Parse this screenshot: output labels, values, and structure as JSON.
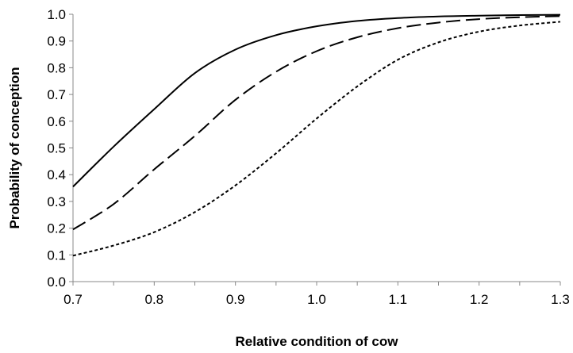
{
  "chart_data": {
    "type": "line",
    "title": "",
    "xlabel": "Relative condition of cow",
    "ylabel": "Probability of conception",
    "xlim": [
      0.7,
      1.3
    ],
    "ylim": [
      0.0,
      1.0
    ],
    "x_ticks": [
      "0.7",
      "0.8",
      "0.9",
      "1.0",
      "1.1",
      "1.2",
      "1.3"
    ],
    "y_ticks": [
      "0.0",
      "0.1",
      "0.2",
      "0.3",
      "0.4",
      "0.5",
      "0.6",
      "0.7",
      "0.8",
      "0.9",
      "1.0"
    ],
    "grid": false,
    "legend": "none",
    "series": [
      {
        "style": "solid",
        "color": "#000000",
        "x": [
          0.7,
          0.75,
          0.8,
          0.85,
          0.9,
          0.95,
          1.0,
          1.05,
          1.1,
          1.15,
          1.2,
          1.25,
          1.3
        ],
        "y": [
          0.355,
          0.505,
          0.645,
          0.78,
          0.868,
          0.922,
          0.955,
          0.975,
          0.986,
          0.992,
          0.995,
          0.997,
          0.998
        ]
      },
      {
        "style": "dashed",
        "color": "#000000",
        "x": [
          0.7,
          0.75,
          0.8,
          0.85,
          0.9,
          0.95,
          1.0,
          1.05,
          1.1,
          1.15,
          1.2,
          1.25,
          1.3
        ],
        "y": [
          0.195,
          0.29,
          0.42,
          0.545,
          0.68,
          0.785,
          0.862,
          0.914,
          0.948,
          0.969,
          0.982,
          0.989,
          0.993
        ]
      },
      {
        "style": "dotted",
        "color": "#000000",
        "x": [
          0.7,
          0.75,
          0.8,
          0.85,
          0.9,
          0.95,
          1.0,
          1.05,
          1.1,
          1.15,
          1.2,
          1.25,
          1.3
        ],
        "y": [
          0.097,
          0.135,
          0.185,
          0.26,
          0.36,
          0.48,
          0.61,
          0.73,
          0.83,
          0.895,
          0.935,
          0.958,
          0.972
        ]
      }
    ]
  }
}
